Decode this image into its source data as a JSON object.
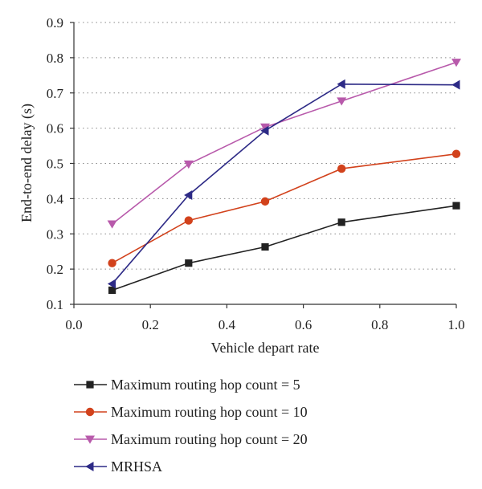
{
  "chart_data": {
    "type": "line",
    "title": "",
    "xlabel": "Vehicle depart rate",
    "ylabel": "End-to-end delay (s)",
    "xlim": [
      0.0,
      1.0
    ],
    "ylim": [
      0.1,
      0.9
    ],
    "xticks": [
      "0.0",
      "0.2",
      "0.4",
      "0.6",
      "0.8",
      "1.0"
    ],
    "yticks": [
      "0.1",
      "0.2",
      "0.3",
      "0.4",
      "0.5",
      "0.6",
      "0.7",
      "0.8",
      "0.9"
    ],
    "grid": "horizontal dotted",
    "legend_position": "bottom",
    "x": [
      0.1,
      0.3,
      0.5,
      0.7,
      1.0
    ],
    "series": [
      {
        "name": "Maximum routing hop count = 5",
        "color": "#222222",
        "marker": "square",
        "values": [
          0.14,
          0.217,
          0.263,
          0.333,
          0.38
        ]
      },
      {
        "name": "Maximum routing hop count = 10",
        "color": "#d2421c",
        "marker": "circle",
        "values": [
          0.217,
          0.338,
          0.392,
          0.485,
          0.527
        ]
      },
      {
        "name": "Maximum routing hop count = 20",
        "color": "#b85aab",
        "marker": "triangle-down",
        "values": [
          0.328,
          0.498,
          0.603,
          0.677,
          0.787
        ]
      },
      {
        "name": "MRHSA",
        "color": "#2d2a86",
        "marker": "triangle-left",
        "values": [
          0.158,
          0.41,
          0.593,
          0.725,
          0.723
        ]
      }
    ]
  }
}
